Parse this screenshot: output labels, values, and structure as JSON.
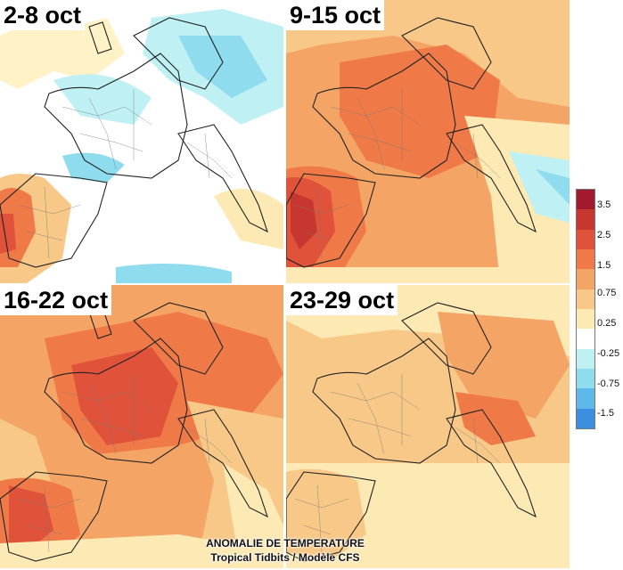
{
  "panels": [
    {
      "label": "2-8 oct",
      "base_color": "#ffffff"
    },
    {
      "label": "9-15 oct",
      "base_color": "#f4b27a"
    },
    {
      "label": "16-22 oct",
      "base_color": "#f29a5e"
    },
    {
      "label": "23-29 oct",
      "base_color": "#f7d2a4"
    }
  ],
  "legend": {
    "ticks": [
      "3.5",
      "2.5",
      "1.5",
      "0.75",
      "0.25",
      "-0.25",
      "-0.75",
      "-1.5"
    ],
    "colors": [
      "#a11a2d",
      "#c7362f",
      "#e0523a",
      "#ef7a48",
      "#f4a464",
      "#f8c888",
      "#fde9b4",
      "#ffffff",
      "#bff0f4",
      "#8fdcef",
      "#5fb8ec",
      "#3b8ee0"
    ]
  },
  "caption": {
    "title": "ANOMALIE DE TEMPERATURE",
    "source": "Tropical Tidbits / Modèle CFS"
  }
}
